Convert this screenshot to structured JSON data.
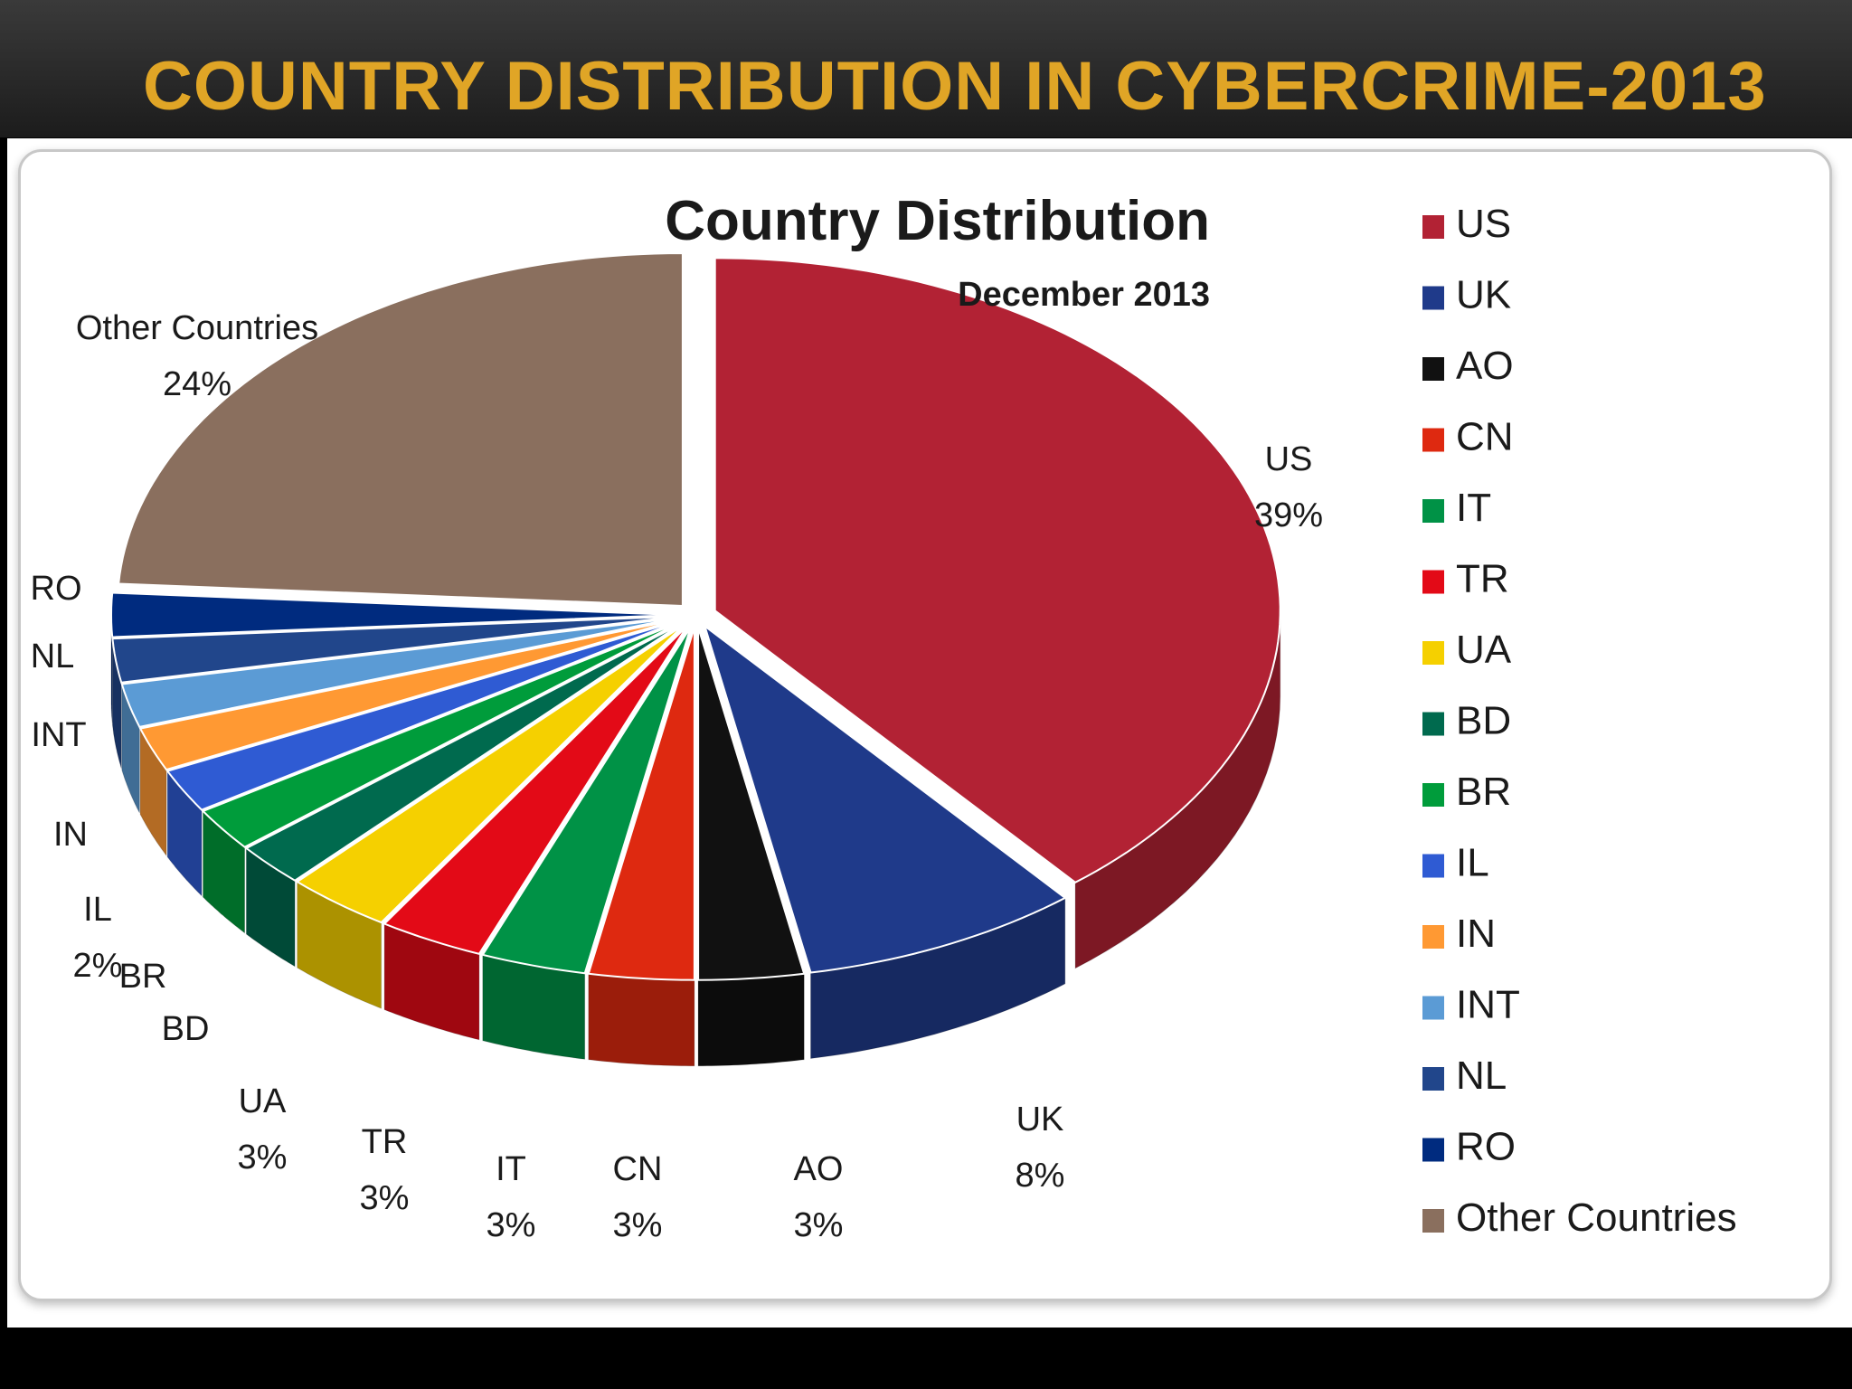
{
  "slide": {
    "title": "COUNTRY DISTRIBUTION IN CYBERCRIME-2013"
  },
  "chart_data": {
    "type": "pie",
    "title": "Country Distribution",
    "subtitle": "December 2013",
    "legend_position": "right",
    "slices": [
      {
        "name": "US",
        "value": 39,
        "label": "39%",
        "color": "#b22234"
      },
      {
        "name": "UK",
        "value": 8,
        "label": "8%",
        "color": "#1f3a8a"
      },
      {
        "name": "AO",
        "value": 3,
        "label": "3%",
        "color": "#111111"
      },
      {
        "name": "CN",
        "value": 3,
        "label": "3%",
        "color": "#de2910"
      },
      {
        "name": "IT",
        "value": 3,
        "label": "3%",
        "color": "#009246"
      },
      {
        "name": "TR",
        "value": 3,
        "label": "3%",
        "color": "#e30a17"
      },
      {
        "name": "UA",
        "value": 3,
        "label": "3%",
        "color": "#f5d000"
      },
      {
        "name": "BD",
        "value": 2,
        "label": "",
        "color": "#006a4e"
      },
      {
        "name": "BR",
        "value": 2,
        "label": "",
        "color": "#009c3b"
      },
      {
        "name": "IL",
        "value": 2,
        "label": "2%",
        "color": "#2f5bd3"
      },
      {
        "name": "IN",
        "value": 2,
        "label": "",
        "color": "#ff9933"
      },
      {
        "name": "INT",
        "value": 2,
        "label": "",
        "color": "#5b9bd5"
      },
      {
        "name": "NL",
        "value": 2,
        "label": "",
        "color": "#21468b"
      },
      {
        "name": "RO",
        "value": 2,
        "label": "",
        "color": "#002b7f"
      },
      {
        "name": "Other Countries",
        "value": 24,
        "label": "24%",
        "color": "#8a6f5e"
      }
    ]
  }
}
